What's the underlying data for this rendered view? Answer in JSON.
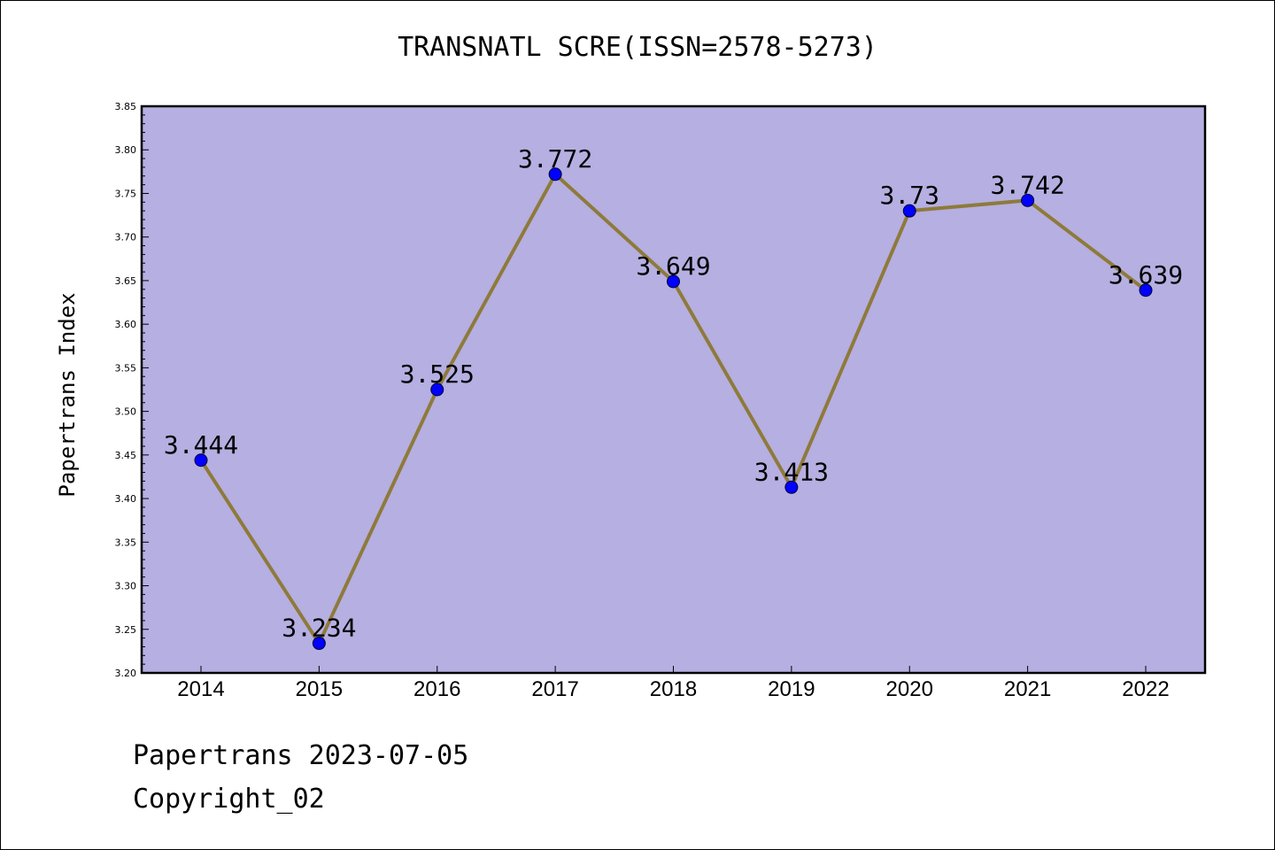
{
  "chart_data": {
    "type": "line",
    "title": "TRANSNATL SCRE(ISSN=2578-5273)",
    "xlabel": "",
    "ylabel": "Papertrans Index",
    "categories": [
      "2014",
      "2015",
      "2016",
      "2017",
      "2018",
      "2019",
      "2020",
      "2021",
      "2022"
    ],
    "values": [
      3.444,
      3.234,
      3.525,
      3.772,
      3.649,
      3.413,
      3.73,
      3.742,
      3.639
    ],
    "data_labels": [
      "3.444",
      "3.234",
      "3.525",
      "3.772",
      "3.649",
      "3.413",
      "3.73",
      "3.742",
      "3.639"
    ],
    "ylim": [
      3.2,
      3.85
    ],
    "yticks": [
      "3.20",
      "3.25",
      "3.30",
      "3.35",
      "3.40",
      "3.45",
      "3.50",
      "3.55",
      "3.60",
      "3.65",
      "3.70",
      "3.75",
      "3.80",
      "3.85"
    ],
    "grid": false,
    "legend": "none",
    "colors": {
      "plot_background": "#b5afe2",
      "line": "#8e7a3a",
      "marker": "#0000ff"
    }
  },
  "footer": {
    "date_line": "Papertrans 2023-07-05",
    "copyright": "Copyright_02"
  }
}
